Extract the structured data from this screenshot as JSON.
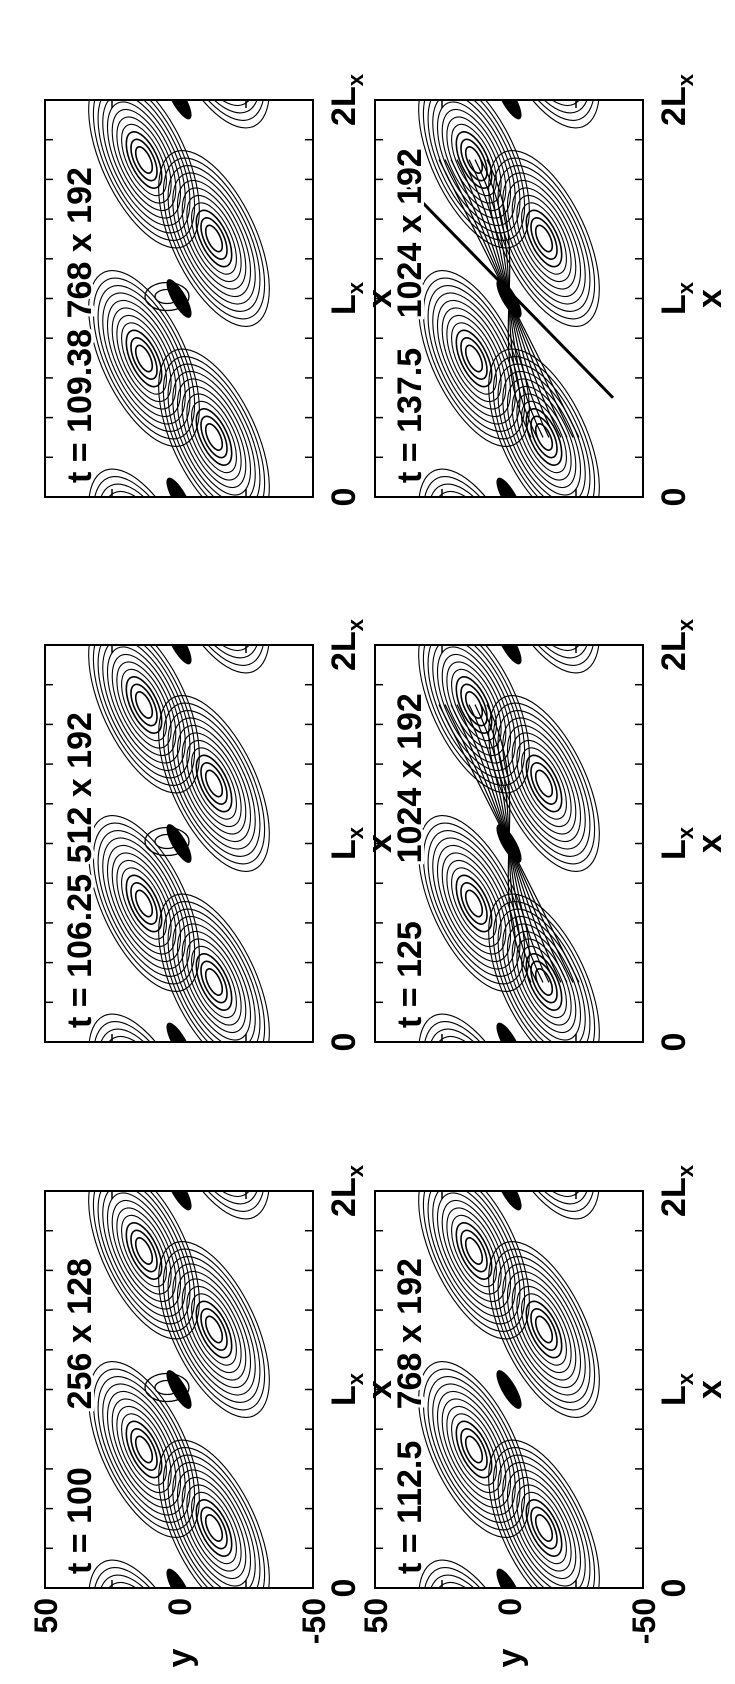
{
  "chart_data": [
    {
      "type": "contour",
      "time_label": "t = 100",
      "grid_label": "256 x 128",
      "x_ticks": [
        "0",
        "L",
        "2L"
      ],
      "x_tick_sub": "x",
      "xlabel": "x",
      "y_ticks": [
        "50",
        "0",
        "-50"
      ],
      "ylabel": "y",
      "ylim": [
        -50,
        50
      ],
      "shape": "two-lobes-with-center-blob"
    },
    {
      "type": "contour",
      "time_label": "t = 106.25",
      "grid_label": "512 x 192",
      "x_ticks": [
        "0",
        "L",
        "2L"
      ],
      "x_tick_sub": "x",
      "xlabel": "x",
      "y_ticks": [],
      "ylabel": "",
      "ylim": [
        -50,
        50
      ],
      "shape": "two-lobes-with-center-blob"
    },
    {
      "type": "contour",
      "time_label": "t = 109.38",
      "grid_label": "768 x 192",
      "x_ticks": [
        "0",
        "L",
        "2L"
      ],
      "x_tick_sub": "x",
      "xlabel": "x",
      "y_ticks": [],
      "ylabel": "",
      "ylim": [
        -50,
        50
      ],
      "shape": "two-lobes-with-center-blob"
    },
    {
      "type": "contour",
      "time_label": "t = 112.5",
      "grid_label": "768 x 192",
      "x_ticks": [
        "0",
        "L",
        "2L"
      ],
      "x_tick_sub": "x",
      "xlabel": "x",
      "y_ticks": [
        "50",
        "0",
        "-50"
      ],
      "ylabel": "y",
      "ylim": [
        -50,
        50
      ],
      "shape": "two-lobes"
    },
    {
      "type": "contour",
      "time_label": "t = 125",
      "grid_label": "1024 x 192",
      "x_ticks": [
        "0",
        "L",
        "2L"
      ],
      "x_tick_sub": "x",
      "xlabel": "x",
      "y_ticks": [],
      "ylabel": "",
      "ylim": [
        -50,
        50
      ],
      "shape": "braided"
    },
    {
      "type": "contour",
      "time_label": "t = 137.5",
      "grid_label": "1024 x 192",
      "x_ticks": [
        "0",
        "L",
        "2L"
      ],
      "x_tick_sub": "x",
      "xlabel": "x",
      "y_ticks": [],
      "ylabel": "",
      "ylim": [
        -50,
        50
      ],
      "shape": "merged-vortex"
    }
  ]
}
